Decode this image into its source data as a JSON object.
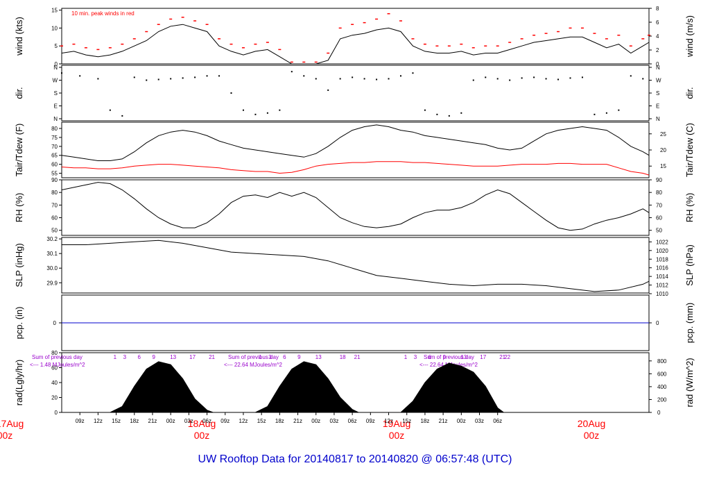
{
  "footer_title": "UW Rooftop Data for 20140817  to  20140820 @ 06:57:48  (UTC)",
  "colors": {
    "data": "#000000",
    "peak": "#ff0000",
    "dew": "#ff0000",
    "precip": "#0000cc",
    "annotation": "#9900cc",
    "date": "#ff0000",
    "title": "#0000cc"
  },
  "time_axis": {
    "hour_labels": [
      "09z",
      "12z",
      "15z",
      "18z",
      "21z",
      "00z",
      "03z",
      "06z",
      "09z",
      "12z",
      "15z",
      "18z",
      "21z",
      "00z",
      "03z",
      "06z",
      "09z",
      "12z",
      "15z",
      "18z",
      "21z",
      "00z",
      "03z",
      "06z"
    ],
    "date_marks": [
      {
        "line1": "17Aug",
        "line2": "00z"
      },
      {
        "line1": "18Aug",
        "line2": "00z"
      },
      {
        "line1": "19Aug",
        "line2": "00z"
      },
      {
        "line1": "20Aug",
        "line2": "00z"
      }
    ]
  },
  "chart_data": [
    {
      "type": "line",
      "id": "wind",
      "left_label": "wind (kts)",
      "right_label": "wind (m/s)",
      "annotation": "10 min. peak winds in red",
      "left_ticks": [
        "0",
        "5",
        "10",
        "15"
      ],
      "right_ticks": [
        "0",
        "2",
        "4",
        "6",
        "8"
      ],
      "ylim": [
        0,
        15.5
      ],
      "series": [
        {
          "role": "speed",
          "x_hours": [
            6,
            8,
            10,
            12,
            14,
            16,
            18,
            20,
            22,
            24,
            26,
            28,
            30,
            32,
            34,
            36,
            38,
            40,
            42,
            44,
            46,
            48,
            50,
            52,
            54,
            56,
            58,
            60,
            62,
            64,
            66,
            68,
            70,
            72,
            74,
            76,
            78,
            80,
            82,
            84,
            86,
            88,
            90,
            92,
            94,
            96,
            98,
            100,
            102,
            103
          ],
          "values": [
            3,
            3.5,
            2.5,
            2,
            2.5,
            3.5,
            5,
            6.5,
            9,
            10.5,
            11,
            10,
            9,
            5,
            3.5,
            2.5,
            3.5,
            4,
            2,
            0,
            0,
            0,
            1,
            7,
            8,
            8.5,
            9.5,
            10,
            9,
            5,
            3.5,
            3,
            3,
            3.5,
            2.5,
            3,
            3,
            4,
            5,
            6,
            6.5,
            7,
            7.5,
            7.5,
            6,
            4.5,
            5.5,
            3,
            5,
            6
          ]
        },
        {
          "role": "peak_10min",
          "x_hours": [
            6,
            8,
            10,
            12,
            14,
            16,
            18,
            20,
            22,
            24,
            26,
            28,
            30,
            32,
            34,
            36,
            38,
            40,
            42,
            44,
            46,
            48,
            50,
            52,
            54,
            56,
            58,
            60,
            62,
            64,
            66,
            68,
            70,
            72,
            74,
            76,
            78,
            80,
            82,
            84,
            86,
            88,
            90,
            92,
            94,
            96,
            98,
            100,
            102,
            103
          ],
          "values": [
            5,
            5.5,
            4.5,
            4,
            4.5,
            5.5,
            7,
            9,
            11,
            12.5,
            13,
            12,
            11,
            7,
            5.5,
            4.5,
            5.5,
            6,
            4,
            0.5,
            0.5,
            0.5,
            3,
            10,
            11,
            11.5,
            12.5,
            14,
            12,
            7,
            5.5,
            5,
            5,
            5.5,
            4.5,
            5,
            5,
            6,
            7,
            8,
            8.5,
            9,
            10,
            10,
            8.5,
            7,
            8,
            5,
            7,
            8
          ]
        }
      ]
    },
    {
      "type": "scatter",
      "id": "direction",
      "left_label": "dir.",
      "right_label": "dir.",
      "categories": [
        "N",
        "E",
        "S",
        "W",
        "N"
      ],
      "x_hours": [
        6,
        9,
        12,
        14,
        16,
        18,
        20,
        22,
        24,
        26,
        28,
        30,
        32,
        34,
        36,
        38,
        40,
        42,
        44,
        46,
        48,
        50,
        52,
        54,
        56,
        58,
        60,
        62,
        64,
        66,
        68,
        70,
        72,
        74,
        76,
        78,
        80,
        82,
        84,
        86,
        88,
        90,
        92,
        94,
        96,
        98,
        100,
        102
      ],
      "values_deg": [
        320,
        300,
        280,
        60,
        20,
        290,
        270,
        275,
        280,
        285,
        290,
        300,
        300,
        180,
        60,
        30,
        40,
        60,
        330,
        300,
        280,
        200,
        280,
        290,
        280,
        275,
        280,
        300,
        320,
        60,
        30,
        20,
        40,
        270,
        290,
        280,
        270,
        285,
        290,
        280,
        275,
        285,
        290,
        30,
        40,
        60,
        300,
        280
      ]
    },
    {
      "type": "line",
      "id": "temperature",
      "left_label": "Tair/Tdew (F)",
      "right_label": "Tair/Tdew (C)",
      "left_ticks": [
        "55",
        "60",
        "65",
        "70",
        "75",
        "80"
      ],
      "right_ticks": [
        "15",
        "20",
        "25"
      ],
      "ylim": [
        52.5,
        83.5
      ],
      "series": [
        {
          "name": "Tair",
          "x_hours": [
            6,
            8,
            10,
            12,
            14,
            16,
            18,
            20,
            22,
            24,
            26,
            28,
            30,
            32,
            34,
            36,
            38,
            40,
            42,
            44,
            46,
            48,
            50,
            52,
            54,
            56,
            58,
            60,
            62,
            64,
            66,
            68,
            70,
            72,
            74,
            76,
            78,
            80,
            82,
            84,
            86,
            88,
            90,
            92,
            94,
            96,
            98,
            100,
            102,
            103
          ],
          "values": [
            65,
            64,
            63,
            62,
            62,
            63,
            67,
            72,
            76,
            78,
            79,
            78,
            76,
            73,
            71,
            69,
            68,
            67,
            66,
            65,
            64,
            66,
            70,
            75,
            79,
            81,
            82,
            81,
            79,
            78,
            76,
            75,
            74,
            73,
            72,
            71,
            69,
            68,
            69,
            73,
            77,
            79,
            80,
            81,
            80,
            79,
            75,
            70,
            67,
            65
          ]
        },
        {
          "name": "Tdew",
          "x_hours": [
            6,
            8,
            10,
            12,
            14,
            16,
            18,
            20,
            22,
            24,
            26,
            28,
            30,
            32,
            34,
            36,
            38,
            40,
            42,
            44,
            46,
            48,
            50,
            52,
            54,
            56,
            58,
            60,
            62,
            64,
            66,
            68,
            70,
            72,
            74,
            76,
            78,
            80,
            82,
            84,
            86,
            88,
            90,
            92,
            94,
            96,
            98,
            100,
            102,
            103
          ],
          "values": [
            58.5,
            58,
            58,
            57.5,
            57.5,
            58,
            59,
            59.5,
            60,
            60,
            59.5,
            59,
            58.5,
            58,
            57,
            56.5,
            56,
            56,
            55,
            55.5,
            57,
            59,
            60,
            60.5,
            61,
            61,
            61.5,
            61.5,
            61.5,
            61,
            61,
            60.5,
            60,
            59.5,
            59,
            59,
            59,
            59.5,
            60,
            60,
            60,
            60.5,
            60.5,
            60,
            60,
            60,
            58,
            56,
            55,
            54
          ]
        }
      ]
    },
    {
      "type": "line",
      "id": "rh",
      "left_label": "RH (%)",
      "right_label": "RH (%)",
      "left_ticks": [
        "50",
        "60",
        "70",
        "80",
        "90"
      ],
      "right_ticks": [
        "50",
        "60",
        "70",
        "80",
        "90"
      ],
      "ylim": [
        46,
        90
      ],
      "series": [
        {
          "name": "RH",
          "x_hours": [
            6,
            8,
            10,
            12,
            14,
            16,
            18,
            20,
            22,
            24,
            26,
            28,
            30,
            32,
            34,
            36,
            38,
            40,
            42,
            44,
            46,
            48,
            50,
            52,
            54,
            56,
            58,
            60,
            62,
            64,
            66,
            68,
            70,
            72,
            74,
            76,
            78,
            80,
            82,
            84,
            86,
            88,
            90,
            92,
            94,
            96,
            98,
            100,
            102,
            103
          ],
          "values": [
            82,
            84,
            86,
            88,
            87,
            82,
            75,
            67,
            60,
            55,
            52,
            52,
            56,
            63,
            72,
            77,
            78,
            76,
            80,
            77,
            80,
            76,
            68,
            60,
            56,
            53,
            52,
            53,
            55,
            60,
            64,
            66,
            66,
            68,
            72,
            78,
            82,
            79,
            72,
            65,
            58,
            52,
            50,
            51,
            55,
            58,
            60,
            63,
            67,
            64
          ]
        }
      ]
    },
    {
      "type": "line",
      "id": "slp",
      "left_label": "SLP (inHg)",
      "right_label": "SLP (hPa)",
      "left_ticks": [
        "29.9",
        "30.0",
        "30.1",
        "30.2"
      ],
      "right_ticks": [
        "1010",
        "1012",
        "1014",
        "1016",
        "1018",
        "1020",
        "1022"
      ],
      "ylim": [
        29.83,
        30.21
      ],
      "series": [
        {
          "name": "SLP",
          "x_hours": [
            6,
            10,
            14,
            18,
            22,
            26,
            30,
            34,
            38,
            42,
            46,
            50,
            54,
            58,
            62,
            66,
            70,
            74,
            78,
            82,
            86,
            90,
            94,
            98,
            102,
            103
          ],
          "values": [
            30.16,
            30.16,
            30.17,
            30.18,
            30.19,
            30.17,
            30.14,
            30.11,
            30.1,
            30.09,
            30.08,
            30.05,
            30.0,
            29.95,
            29.93,
            29.91,
            29.89,
            29.88,
            29.89,
            29.89,
            29.88,
            29.86,
            29.84,
            29.85,
            29.89,
            29.91
          ]
        }
      ]
    },
    {
      "type": "line",
      "id": "precip",
      "left_label": "pcp. (in)",
      "right_label": "pcp. (mm)",
      "left_ticks": [
        "0"
      ],
      "right_ticks": [
        "0"
      ],
      "ylim": [
        -1,
        1
      ],
      "series": [
        {
          "name": "pcp",
          "x_hours": [
            6,
            103
          ],
          "values": [
            0,
            0
          ]
        }
      ]
    },
    {
      "type": "area",
      "id": "radiation",
      "left_label": "rad(Lgly/hr)",
      "right_label": "rad (W/m^2)",
      "left_ticks": [
        "0",
        "20",
        "40",
        "60",
        "80"
      ],
      "right_ticks": [
        "0",
        "200",
        "400",
        "600",
        "800"
      ],
      "ylim": [
        0,
        80
      ],
      "day_notes": [
        {
          "line1": "Sum of previous day",
          "line2": "<--- 1.48 MJoules/m^2"
        },
        {
          "line1": "Sum of previous day",
          "line2": "<--- 22.64 MJoules/m^2"
        },
        {
          "line1": "Sum of previous day",
          "line2": "<--- 22.64 MJoules/m^2"
        }
      ],
      "hour_markers": [
        [
          "1",
          "3",
          "6",
          "9",
          "13",
          "17",
          "21"
        ],
        [
          "1",
          "3",
          "6",
          "9",
          "13",
          "18",
          "21"
        ],
        [
          "1",
          "3",
          "6",
          "9",
          "13",
          "17",
          "21",
          "22"
        ]
      ],
      "series": [
        {
          "name": "day1",
          "x_hours": [
            14,
            16,
            18,
            20,
            22,
            24,
            26,
            28,
            30,
            31
          ],
          "values": [
            0,
            8,
            35,
            58,
            68,
            64,
            45,
            18,
            3,
            0
          ]
        },
        {
          "name": "day2",
          "x_hours": [
            38,
            40,
            42,
            44,
            46,
            48,
            50,
            52,
            54,
            55
          ],
          "values": [
            0,
            8,
            35,
            58,
            68,
            64,
            45,
            20,
            4,
            0
          ]
        },
        {
          "name": "day3",
          "x_hours": [
            62,
            64,
            66,
            68,
            70,
            72,
            74,
            76,
            78,
            79
          ],
          "values": [
            0,
            15,
            40,
            58,
            66,
            62,
            54,
            35,
            6,
            0
          ]
        }
      ]
    }
  ]
}
